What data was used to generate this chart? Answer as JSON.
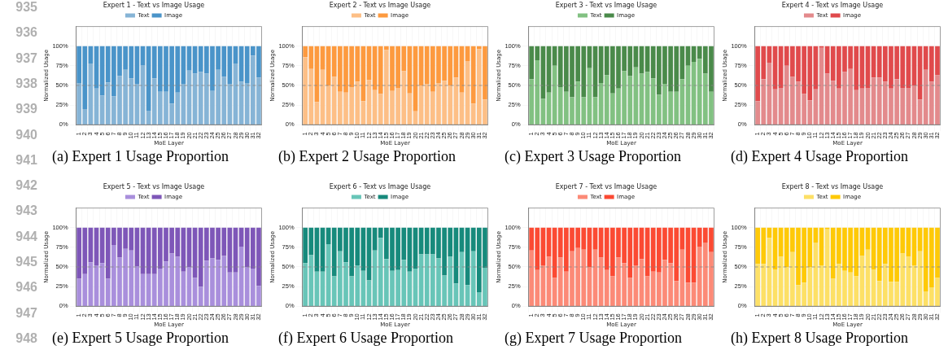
{
  "chart_data": [
    {
      "type": "bar",
      "stacked": true,
      "title": "Expert 1 - Text vs Image Usage",
      "xlabel": "MoE Layer",
      "ylabel": "Normalized Usage",
      "legend": "top",
      "grid": true,
      "annotations": [
        "935",
        "936",
        "937",
        "938",
        "939",
        "940",
        "941",
        "942",
        "943",
        "944",
        "945",
        "946",
        "947",
        "948",
        "(a) Expert 1 Usage Proportion"
      ],
      "ylim": [
        0,
        125
      ],
      "yticks": [
        {
          "value": 0,
          "label": "0%"
        },
        {
          "value": 25,
          "label": "25%"
        },
        {
          "value": 50,
          "label": "50%"
        },
        {
          "value": 75,
          "label": "75%"
        },
        {
          "value": 100,
          "label": "100%"
        }
      ],
      "ref_lines": [
        {
          "axis": "y",
          "value": 50,
          "color": "#888888",
          "line_style": "dashed"
        }
      ],
      "categories": [
        "1",
        "2",
        "3",
        "4",
        "5",
        "6",
        "7",
        "8",
        "9",
        "10",
        "11",
        "12",
        "13",
        "14",
        "15",
        "16",
        "17",
        "18",
        "19",
        "20",
        "21",
        "22",
        "23",
        "24",
        "25",
        "26",
        "27",
        "28",
        "29",
        "30",
        "31",
        "32"
      ],
      "series": [
        {
          "name": "Text",
          "color": "#86b4d6",
          "values": [
            53,
            20,
            78,
            46,
            37,
            54,
            36,
            62,
            70,
            59,
            52,
            76,
            18,
            59,
            42,
            42,
            27,
            41,
            52,
            69,
            65,
            67,
            65,
            43,
            70,
            61,
            52,
            78,
            55,
            53,
            88,
            60
          ]
        },
        {
          "name": "Image",
          "color": "#4a94c9",
          "values": [
            47,
            80,
            22,
            54,
            63,
            46,
            64,
            38,
            30,
            41,
            48,
            24,
            82,
            41,
            58,
            58,
            73,
            59,
            48,
            31,
            35,
            33,
            35,
            57,
            30,
            39,
            48,
            22,
            45,
            47,
            12,
            40
          ]
        }
      ]
    },
    {
      "type": "bar",
      "stacked": true,
      "title": "Expert 2 - Text vs Image Usage",
      "xlabel": "MoE Layer",
      "ylabel": "Normalized Usage",
      "legend": "top",
      "grid": true,
      "annotations": [
        "(b) Expert 2 Usage Proportion"
      ],
      "ylim": [
        0,
        125
      ],
      "yticks": [
        {
          "value": 0,
          "label": "0%"
        },
        {
          "value": 25,
          "label": "25%"
        },
        {
          "value": 50,
          "label": "50%"
        },
        {
          "value": 75,
          "label": "75%"
        },
        {
          "value": 100,
          "label": "100%"
        }
      ],
      "ref_lines": [
        {
          "axis": "y",
          "value": 50,
          "color": "#888888",
          "line_style": "dashed"
        }
      ],
      "categories": [
        "1",
        "2",
        "3",
        "4",
        "5",
        "6",
        "7",
        "8",
        "9",
        "10",
        "11",
        "12",
        "13",
        "14",
        "15",
        "16",
        "17",
        "18",
        "19",
        "20",
        "21",
        "22",
        "23",
        "24",
        "25",
        "26",
        "27",
        "28",
        "29",
        "30",
        "31",
        "32"
      ],
      "series": [
        {
          "name": "Text",
          "color": "#fdbf86",
          "values": [
            86,
            71,
            29,
            70,
            50,
            61,
            42,
            41,
            48,
            55,
            30,
            57,
            44,
            39,
            95,
            43,
            47,
            68,
            40,
            17,
            50,
            52,
            42,
            53,
            56,
            50,
            60,
            41,
            81,
            27,
            96,
            32
          ]
        },
        {
          "name": "Image",
          "color": "#fd9a3f",
          "values": [
            14,
            29,
            71,
            30,
            50,
            39,
            58,
            59,
            52,
            45,
            70,
            43,
            56,
            61,
            5,
            57,
            53,
            32,
            60,
            83,
            50,
            48,
            58,
            47,
            44,
            50,
            40,
            59,
            19,
            73,
            4,
            68
          ]
        }
      ]
    },
    {
      "type": "bar",
      "stacked": true,
      "title": "Expert 3 - Text vs Image Usage",
      "xlabel": "MoE Layer",
      "ylabel": "Normalized Usage",
      "legend": "top",
      "grid": true,
      "annotations": [
        "(c) Expert 3 Usage Proportion"
      ],
      "ylim": [
        0,
        125
      ],
      "yticks": [
        {
          "value": 0,
          "label": "0%"
        },
        {
          "value": 25,
          "label": "25%"
        },
        {
          "value": 50,
          "label": "50%"
        },
        {
          "value": 75,
          "label": "75%"
        },
        {
          "value": 100,
          "label": "100%"
        }
      ],
      "ref_lines": [
        {
          "axis": "y",
          "value": 50,
          "color": "#888888",
          "line_style": "dashed"
        }
      ],
      "categories": [
        "1",
        "2",
        "3",
        "4",
        "5",
        "6",
        "7",
        "8",
        "9",
        "10",
        "11",
        "12",
        "13",
        "14",
        "15",
        "16",
        "17",
        "18",
        "19",
        "20",
        "21",
        "22",
        "23",
        "24",
        "25",
        "26",
        "27",
        "28",
        "29",
        "30",
        "31",
        "32"
      ],
      "series": [
        {
          "name": "Text",
          "color": "#82c182",
          "values": [
            58,
            82,
            33,
            41,
            75,
            48,
            42,
            35,
            55,
            35,
            72,
            35,
            53,
            63,
            40,
            46,
            68,
            62,
            73,
            65,
            67,
            59,
            38,
            52,
            42,
            42,
            58,
            75,
            80,
            84,
            65,
            42
          ]
        },
        {
          "name": "Image",
          "color": "#4a8a4a",
          "values": [
            42,
            18,
            67,
            59,
            25,
            52,
            58,
            65,
            45,
            65,
            28,
            65,
            47,
            37,
            60,
            54,
            32,
            38,
            27,
            35,
            33,
            41,
            62,
            48,
            58,
            58,
            42,
            25,
            20,
            16,
            35,
            58
          ]
        }
      ]
    },
    {
      "type": "bar",
      "stacked": true,
      "title": "Expert 4 - Text vs Image Usage",
      "xlabel": "MoE Layer",
      "ylabel": "Normalized Usage",
      "legend": "top",
      "grid": true,
      "annotations": [
        "(d) Expert 4 Usage Proportion"
      ],
      "ylim": [
        0,
        125
      ],
      "yticks": [
        {
          "value": 0,
          "label": "0%"
        },
        {
          "value": 25,
          "label": "25%"
        },
        {
          "value": 50,
          "label": "50%"
        },
        {
          "value": 75,
          "label": "75%"
        },
        {
          "value": 100,
          "label": "100%"
        }
      ],
      "ref_lines": [
        {
          "axis": "y",
          "value": 50,
          "color": "#888888",
          "line_style": "dashed"
        }
      ],
      "categories": [
        "1",
        "2",
        "3",
        "4",
        "5",
        "6",
        "7",
        "8",
        "9",
        "10",
        "11",
        "12",
        "13",
        "14",
        "15",
        "16",
        "17",
        "18",
        "19",
        "20",
        "21",
        "22",
        "23",
        "24",
        "25",
        "26",
        "27",
        "28",
        "29",
        "30",
        "31",
        "32"
      ],
      "series": [
        {
          "name": "Text",
          "color": "#e38a8c",
          "values": [
            30,
            58,
            79,
            45,
            47,
            75,
            61,
            55,
            39,
            31,
            45,
            98,
            65,
            56,
            46,
            67,
            71,
            44,
            46,
            47,
            60,
            60,
            55,
            46,
            58,
            47,
            47,
            50,
            32,
            70,
            55,
            63
          ]
        },
        {
          "name": "Image",
          "color": "#e04a4c",
          "values": [
            70,
            42,
            21,
            55,
            53,
            25,
            39,
            45,
            61,
            69,
            55,
            2,
            35,
            44,
            54,
            33,
            29,
            56,
            54,
            53,
            40,
            40,
            45,
            54,
            42,
            53,
            53,
            50,
            68,
            30,
            45,
            37
          ]
        }
      ]
    },
    {
      "type": "bar",
      "stacked": true,
      "title": "Expert 5 - Text vs Image Usage",
      "xlabel": "MoE Layer",
      "ylabel": "Normalized Usage",
      "legend": "top",
      "grid": true,
      "annotations": [
        "(e) Expert 5 Usage Proportion"
      ],
      "ylim": [
        0,
        125
      ],
      "yticks": [
        {
          "value": 0,
          "label": "0%"
        },
        {
          "value": 25,
          "label": "25%"
        },
        {
          "value": 50,
          "label": "50%"
        },
        {
          "value": 75,
          "label": "75%"
        },
        {
          "value": 100,
          "label": "100%"
        }
      ],
      "ref_lines": [
        {
          "axis": "y",
          "value": 50,
          "color": "#888888",
          "line_style": "dashed"
        }
      ],
      "categories": [
        "1",
        "2",
        "3",
        "4",
        "5",
        "6",
        "7",
        "8",
        "9",
        "10",
        "11",
        "12",
        "13",
        "14",
        "15",
        "16",
        "17",
        "18",
        "19",
        "20",
        "21",
        "22",
        "23",
        "24",
        "25",
        "26",
        "27",
        "28",
        "29",
        "30",
        "31",
        "32"
      ],
      "series": [
        {
          "name": "Text",
          "color": "#a98fdc",
          "values": [
            35,
            41,
            56,
            52,
            55,
            35,
            78,
            62,
            73,
            71,
            51,
            41,
            41,
            41,
            48,
            57,
            67,
            63,
            44,
            50,
            36,
            25,
            58,
            61,
            59,
            64,
            43,
            43,
            76,
            50,
            48,
            26
          ]
        },
        {
          "name": "Image",
          "color": "#7e57b8",
          "values": [
            65,
            59,
            44,
            48,
            45,
            65,
            22,
            38,
            27,
            29,
            49,
            59,
            59,
            59,
            52,
            43,
            33,
            37,
            56,
            50,
            64,
            75,
            42,
            39,
            41,
            36,
            57,
            57,
            24,
            50,
            52,
            74
          ]
        }
      ]
    },
    {
      "type": "bar",
      "stacked": true,
      "title": "Expert 6 - Text vs Image Usage",
      "xlabel": "MoE Layer",
      "ylabel": "Normalized Usage",
      "legend": "top",
      "grid": true,
      "annotations": [
        "(f) Expert 6 Usage Proportion"
      ],
      "ylim": [
        0,
        125
      ],
      "yticks": [
        {
          "value": 0,
          "label": "0%"
        },
        {
          "value": 25,
          "label": "25%"
        },
        {
          "value": 50,
          "label": "50%"
        },
        {
          "value": 75,
          "label": "75%"
        },
        {
          "value": 100,
          "label": "100%"
        }
      ],
      "ref_lines": [
        {
          "axis": "y",
          "value": 50,
          "color": "#888888",
          "line_style": "dashed"
        }
      ],
      "categories": [
        "1",
        "2",
        "3",
        "4",
        "5",
        "6",
        "7",
        "8",
        "9",
        "10",
        "11",
        "12",
        "13",
        "14",
        "15",
        "16",
        "17",
        "18",
        "19",
        "20",
        "21",
        "22",
        "23",
        "24",
        "25",
        "26",
        "27",
        "28",
        "29",
        "30",
        "31",
        "32"
      ],
      "series": [
        {
          "name": "Text",
          "color": "#68c5b8",
          "values": [
            55,
            65,
            44,
            44,
            79,
            38,
            70,
            56,
            38,
            52,
            45,
            33,
            71,
            87,
            60,
            45,
            46,
            59,
            44,
            48,
            66,
            66,
            66,
            61,
            39,
            63,
            29,
            69,
            27,
            70,
            18,
            49
          ]
        },
        {
          "name": "Image",
          "color": "#178a7c",
          "values": [
            45,
            35,
            56,
            56,
            21,
            62,
            30,
            44,
            62,
            48,
            55,
            67,
            29,
            13,
            40,
            55,
            54,
            41,
            56,
            52,
            34,
            34,
            34,
            39,
            61,
            37,
            71,
            31,
            73,
            30,
            82,
            51
          ]
        }
      ]
    },
    {
      "type": "bar",
      "stacked": true,
      "title": "Expert 7 - Text vs Image Usage",
      "xlabel": "MoE Layer",
      "ylabel": "Normalized Usage",
      "legend": "top",
      "grid": true,
      "annotations": [
        "(g) Expert 7 Usage Proportion"
      ],
      "ylim": [
        0,
        125
      ],
      "yticks": [
        {
          "value": 0,
          "label": "0%"
        },
        {
          "value": 25,
          "label": "25%"
        },
        {
          "value": 50,
          "label": "50%"
        },
        {
          "value": 75,
          "label": "75%"
        },
        {
          "value": 100,
          "label": "100%"
        }
      ],
      "ref_lines": [
        {
          "axis": "y",
          "value": 50,
          "color": "#888888",
          "line_style": "dashed"
        }
      ],
      "categories": [
        "1",
        "2",
        "3",
        "4",
        "5",
        "6",
        "7",
        "8",
        "9",
        "10",
        "11",
        "12",
        "13",
        "14",
        "15",
        "16",
        "17",
        "18",
        "19",
        "20",
        "21",
        "22",
        "23",
        "24",
        "25",
        "26",
        "27",
        "28",
        "29",
        "30",
        "31",
        "32"
      ],
      "series": [
        {
          "name": "Text",
          "color": "#fc8a77",
          "values": [
            71,
            46,
            52,
            63,
            36,
            62,
            44,
            70,
            74,
            72,
            50,
            72,
            62,
            46,
            38,
            62,
            55,
            36,
            52,
            60,
            38,
            44,
            43,
            59,
            55,
            32,
            72,
            30,
            30,
            76,
            81,
            69
          ]
        },
        {
          "name": "Image",
          "color": "#fb4a33",
          "values": [
            29,
            54,
            48,
            37,
            64,
            38,
            56,
            30,
            26,
            28,
            50,
            28,
            38,
            54,
            62,
            38,
            45,
            64,
            48,
            40,
            62,
            56,
            57,
            41,
            45,
            68,
            28,
            70,
            70,
            24,
            19,
            31
          ]
        }
      ]
    },
    {
      "type": "bar",
      "stacked": true,
      "title": "Expert 8 - Text vs Image Usage",
      "xlabel": "MoE Layer",
      "ylabel": "Normalized Usage",
      "legend": "top",
      "grid": true,
      "annotations": [
        "(h) Expert 8 Usage Proportion"
      ],
      "ylim": [
        0,
        125
      ],
      "yticks": [
        {
          "value": 0,
          "label": "0%"
        },
        {
          "value": 25,
          "label": "25%"
        },
        {
          "value": 50,
          "label": "50%"
        },
        {
          "value": 75,
          "label": "75%"
        },
        {
          "value": 100,
          "label": "100%"
        }
      ],
      "ref_lines": [
        {
          "axis": "y",
          "value": 50,
          "color": "#888888",
          "line_style": "dashed"
        }
      ],
      "categories": [
        "1",
        "2",
        "3",
        "4",
        "5",
        "6",
        "7",
        "8",
        "9",
        "10",
        "11",
        "12",
        "13",
        "14",
        "15",
        "16",
        "17",
        "18",
        "19",
        "20",
        "21",
        "22",
        "23",
        "24",
        "25",
        "26",
        "27",
        "28",
        "29",
        "30",
        "31",
        "32"
      ],
      "series": [
        {
          "name": "Text",
          "color": "#fde066",
          "values": [
            54,
            54,
            87,
            47,
            63,
            50,
            69,
            27,
            30,
            50,
            81,
            52,
            98,
            35,
            54,
            45,
            43,
            38,
            64,
            72,
            47,
            32,
            54,
            31,
            31,
            67,
            63,
            52,
            70,
            19,
            24,
            36
          ]
        },
        {
          "name": "Image",
          "color": "#fec907",
          "values": [
            46,
            46,
            13,
            53,
            37,
            50,
            31,
            73,
            70,
            50,
            19,
            48,
            2,
            65,
            46,
            55,
            57,
            62,
            36,
            28,
            53,
            68,
            46,
            69,
            69,
            33,
            37,
            48,
            30,
            81,
            76,
            64
          ]
        }
      ]
    }
  ]
}
